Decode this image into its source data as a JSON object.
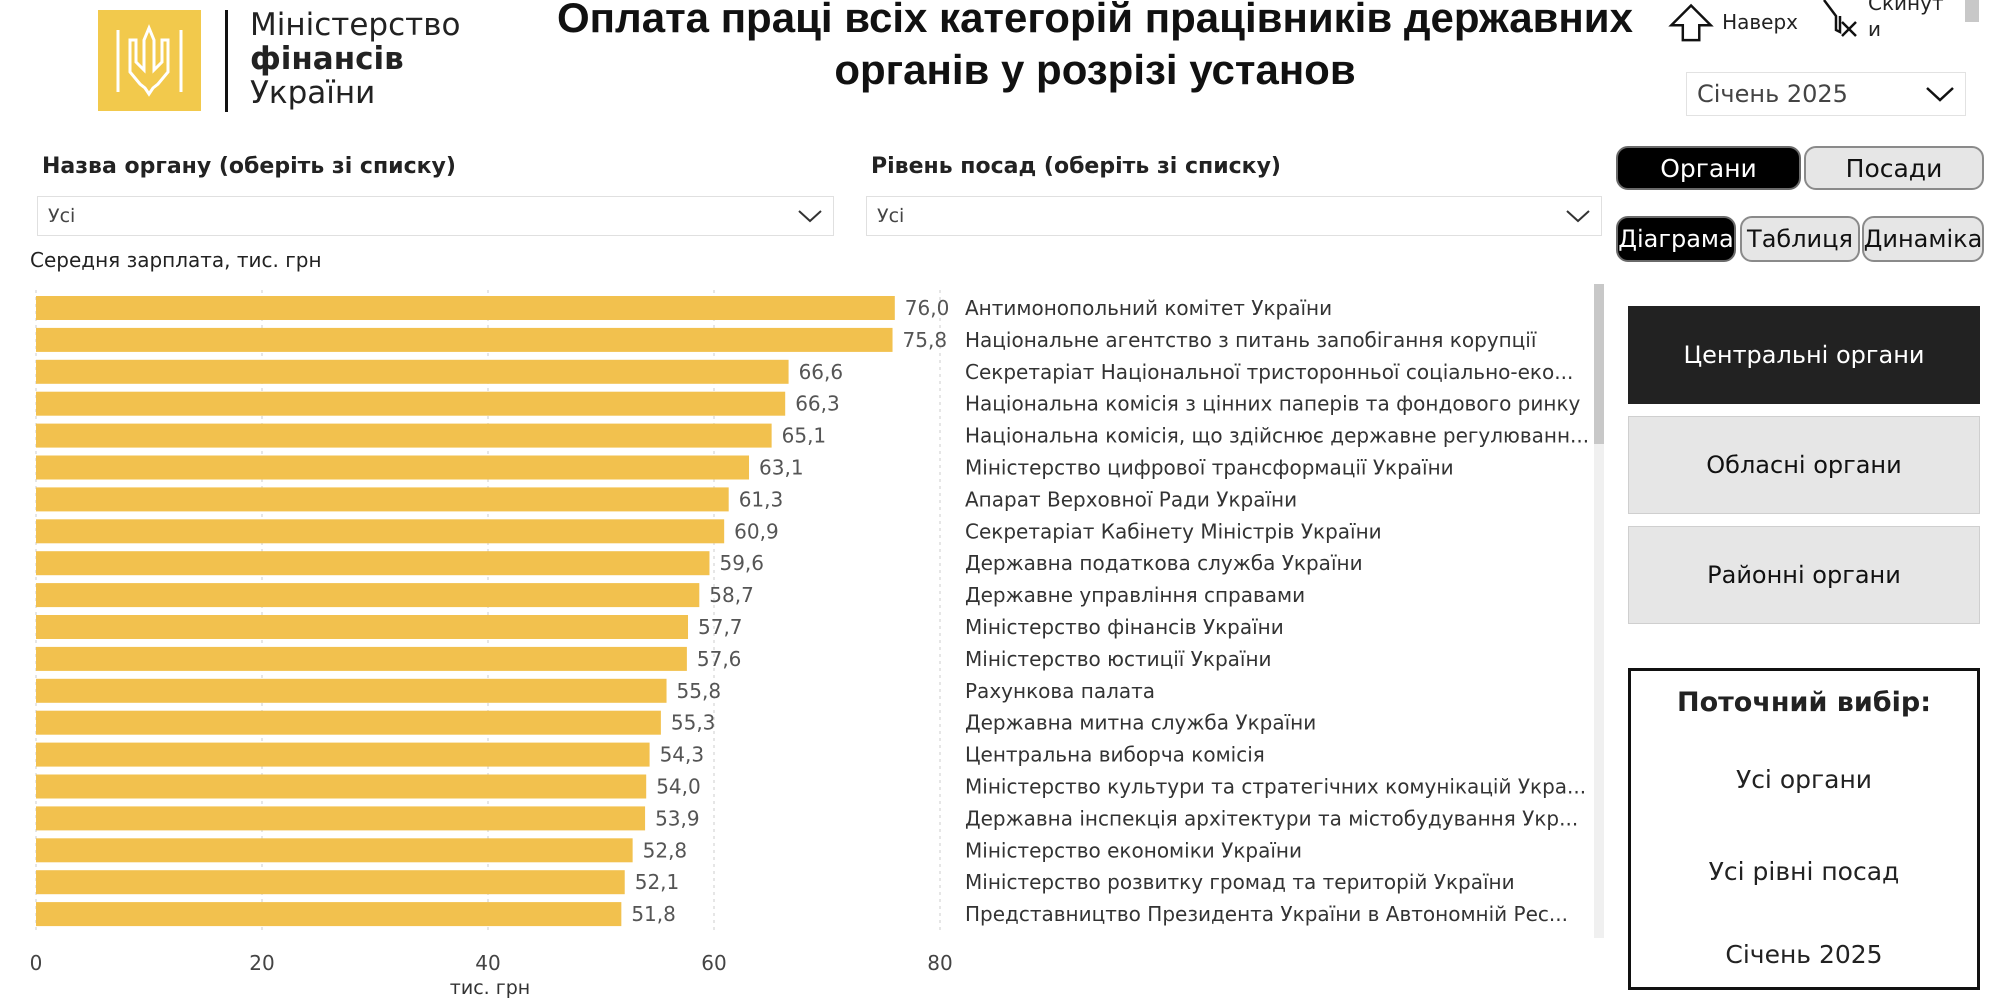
{
  "header": {
    "logo_text": {
      "line1": "Міністерство",
      "line2": "фінансів",
      "line3": "України"
    },
    "title_line1": "Оплата праці всіх категорій працівників державних",
    "title_line2": "органів у розрізі установ",
    "nav_up_label": "Наверх",
    "nav_reset_label": "Скинут и",
    "month_selected": "Січень 2025"
  },
  "filters": {
    "organ": {
      "label": "Назва органу (оберіть зі списку)",
      "value": "Усі"
    },
    "position_level": {
      "label": "Рівень посад (оберіть зі списку)",
      "value": "Усі"
    }
  },
  "toggles": {
    "view_mode": [
      {
        "label": "Органи",
        "active": true
      },
      {
        "label": "Посади",
        "active": false
      }
    ],
    "display_mode": [
      {
        "label": "Діаграма",
        "active": true
      },
      {
        "label": "Таблиця",
        "active": false
      },
      {
        "label": "Динаміка",
        "active": false
      }
    ]
  },
  "levels": [
    {
      "label": "Центральні органи",
      "active": true
    },
    {
      "label": "Обласні органи",
      "active": false
    },
    {
      "label": "Районні органи",
      "active": false
    }
  ],
  "summary": {
    "heading": "Поточний вибір:",
    "organs": "Усі органи",
    "levels": "Усі рівні посад",
    "month": "Січень 2025"
  },
  "colors": {
    "bar": "#f2c14e",
    "active_bg": "#222222",
    "inactive_bg": "#e6e6e6",
    "grid": "#cccccc"
  },
  "chart_data": {
    "type": "bar",
    "orientation": "horizontal",
    "title": "Середня зарплата, тис. грн",
    "xlabel": "тис. грн",
    "xlim": [
      0,
      80
    ],
    "xticks": [
      0,
      20,
      40,
      60,
      80
    ],
    "grid": true,
    "categories": [
      "Антимонопольний комітет України",
      "Національне агентство з питань запобігання корупції",
      "Секретаріат Національної тристоронньої соціально-еко...",
      "Національна комісія з цінних паперів та фондового ринку",
      "Національна комісія, що здійснює державне регулюванн...",
      "Міністерство цифрової трансформації України",
      "Апарат Верховної Ради України",
      "Секретаріат Кабінету Міністрів України",
      "Державна податкова служба України",
      "Державне управління справами",
      "Міністерство фінансів України",
      "Міністерство юстиції України",
      "Рахункова палата",
      "Державна митна служба України",
      "Центральна виборча комісія",
      "Міністерство культури та стратегічних комунікацій Укра...",
      "Державна інспекція архітектури та містобудування Укр...",
      "Міністерство економіки України",
      "Міністерство розвитку громад та територій України",
      "Представництво Президента України в Автономній Рес..."
    ],
    "values": [
      76.0,
      75.8,
      66.6,
      66.3,
      65.1,
      63.1,
      61.3,
      60.9,
      59.6,
      58.7,
      57.7,
      57.6,
      55.8,
      55.3,
      54.3,
      54.0,
      53.9,
      52.8,
      52.1,
      51.8
    ],
    "value_labels": [
      "76,0",
      "75,8",
      "66,6",
      "66,3",
      "65,1",
      "63,1",
      "61,3",
      "60,9",
      "59,6",
      "58,7",
      "57,7",
      "57,6",
      "55,8",
      "55,3",
      "54,3",
      "54,0",
      "53,9",
      "52,8",
      "52,1",
      "51,8"
    ]
  }
}
